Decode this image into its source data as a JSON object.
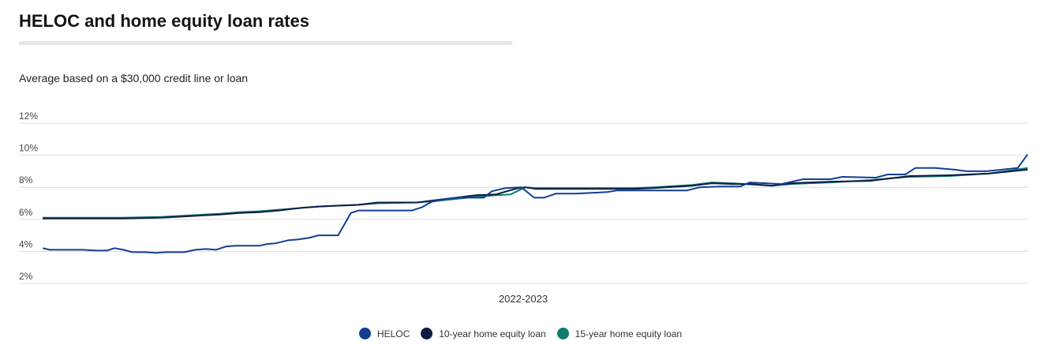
{
  "header": {
    "title": "HELOC and home equity loan rates",
    "subtitle": "Average based on a $30,000 credit line or loan"
  },
  "chart_data": {
    "type": "line",
    "title": "HELOC and home equity loan rates",
    "subtitle": "Average based on a $30,000 credit line or loan",
    "xlabel": "2022-2023",
    "ylabel": "",
    "x_unit": "relative time index (0 = start, 100 = end)",
    "xlim": [
      0,
      100
    ],
    "ylim": [
      2,
      12
    ],
    "y_ticks": [
      2,
      4,
      6,
      8,
      10,
      12
    ],
    "y_tick_labels": [
      "2%",
      "4%",
      "6%",
      "8%",
      "10%",
      "12%"
    ],
    "grid": true,
    "legend_position": "bottom-center",
    "series": [
      {
        "name": "HELOC",
        "color": "#123f93",
        "points": [
          [
            0,
            4.2
          ],
          [
            0.7,
            4.1
          ],
          [
            4.1,
            4.1
          ],
          [
            5.4,
            4.05
          ],
          [
            6.5,
            4.05
          ],
          [
            7.3,
            4.2
          ],
          [
            8.2,
            4.1
          ],
          [
            9.1,
            3.95
          ],
          [
            10.5,
            3.95
          ],
          [
            11.5,
            3.9
          ],
          [
            12.5,
            3.95
          ],
          [
            14.4,
            3.95
          ],
          [
            15.5,
            4.1
          ],
          [
            16.6,
            4.15
          ],
          [
            17.6,
            4.1
          ],
          [
            18.6,
            4.3
          ],
          [
            19.6,
            4.35
          ],
          [
            22,
            4.35
          ],
          [
            22.7,
            4.45
          ],
          [
            23.6,
            4.5
          ],
          [
            25,
            4.7
          ],
          [
            26,
            4.75
          ],
          [
            27.1,
            4.85
          ],
          [
            28,
            5.0
          ],
          [
            30,
            5.0
          ],
          [
            31.3,
            6.4
          ],
          [
            32.1,
            6.55
          ],
          [
            37.5,
            6.55
          ],
          [
            38.5,
            6.75
          ],
          [
            39.5,
            7.1
          ],
          [
            40.9,
            7.25
          ],
          [
            42.2,
            7.35
          ],
          [
            44.8,
            7.35
          ],
          [
            45.6,
            7.75
          ],
          [
            47,
            7.95
          ],
          [
            48.6,
            8.0
          ],
          [
            49.9,
            7.35
          ],
          [
            50.9,
            7.35
          ],
          [
            52.1,
            7.6
          ],
          [
            54.1,
            7.6
          ],
          [
            57.3,
            7.7
          ],
          [
            58.3,
            7.8
          ],
          [
            62.7,
            7.8
          ],
          [
            65.4,
            7.8
          ],
          [
            66.7,
            8.0
          ],
          [
            68.8,
            8.05
          ],
          [
            70.8,
            8.05
          ],
          [
            71.8,
            8.3
          ],
          [
            75,
            8.2
          ],
          [
            77.2,
            8.5
          ],
          [
            80,
            8.5
          ],
          [
            81.2,
            8.65
          ],
          [
            84.6,
            8.6
          ],
          [
            85.8,
            8.8
          ],
          [
            87.6,
            8.8
          ],
          [
            88.6,
            9.2
          ],
          [
            90.6,
            9.2
          ],
          [
            92.6,
            9.1
          ],
          [
            93.8,
            9.0
          ],
          [
            95.8,
            9.0
          ],
          [
            99,
            9.2
          ],
          [
            100,
            10.05
          ]
        ]
      },
      {
        "name": "10-year home equity loan",
        "color": "#0c1d45",
        "points": [
          [
            0,
            6.05
          ],
          [
            8,
            6.05
          ],
          [
            12,
            6.1
          ],
          [
            15,
            6.2
          ],
          [
            18,
            6.3
          ],
          [
            20,
            6.4
          ],
          [
            22,
            6.45
          ],
          [
            24,
            6.55
          ],
          [
            26,
            6.7
          ],
          [
            28,
            6.8
          ],
          [
            30,
            6.85
          ],
          [
            32,
            6.9
          ],
          [
            34,
            7.05
          ],
          [
            38,
            7.05
          ],
          [
            40,
            7.2
          ],
          [
            44,
            7.5
          ],
          [
            46,
            7.55
          ],
          [
            48,
            7.9
          ],
          [
            49,
            8.0
          ],
          [
            50,
            7.9
          ],
          [
            60,
            7.9
          ],
          [
            62,
            7.95
          ],
          [
            66,
            8.1
          ],
          [
            68,
            8.25
          ],
          [
            70,
            8.2
          ],
          [
            72,
            8.2
          ],
          [
            74,
            8.1
          ],
          [
            76,
            8.25
          ],
          [
            80,
            8.35
          ],
          [
            84,
            8.4
          ],
          [
            86,
            8.55
          ],
          [
            88,
            8.7
          ],
          [
            92,
            8.75
          ],
          [
            96,
            8.85
          ],
          [
            100,
            9.1
          ]
        ]
      },
      {
        "name": "15-year home equity loan",
        "color": "#0f7b6f",
        "points": [
          [
            0,
            6.1
          ],
          [
            8,
            6.1
          ],
          [
            12,
            6.15
          ],
          [
            15,
            6.25
          ],
          [
            18,
            6.35
          ],
          [
            20,
            6.45
          ],
          [
            22,
            6.5
          ],
          [
            24,
            6.6
          ],
          [
            26,
            6.7
          ],
          [
            28,
            6.8
          ],
          [
            30,
            6.85
          ],
          [
            32,
            6.9
          ],
          [
            34,
            7.0
          ],
          [
            38,
            7.05
          ],
          [
            40,
            7.15
          ],
          [
            44,
            7.4
          ],
          [
            46,
            7.5
          ],
          [
            47.5,
            7.55
          ],
          [
            49,
            8.0
          ],
          [
            50,
            7.95
          ],
          [
            60,
            7.95
          ],
          [
            62,
            8.0
          ],
          [
            66,
            8.15
          ],
          [
            68,
            8.3
          ],
          [
            70,
            8.25
          ],
          [
            74,
            8.1
          ],
          [
            76,
            8.2
          ],
          [
            80,
            8.3
          ],
          [
            84,
            8.45
          ],
          [
            86,
            8.55
          ],
          [
            88,
            8.65
          ],
          [
            92,
            8.7
          ],
          [
            96,
            8.85
          ],
          [
            100,
            9.2
          ]
        ]
      }
    ]
  }
}
